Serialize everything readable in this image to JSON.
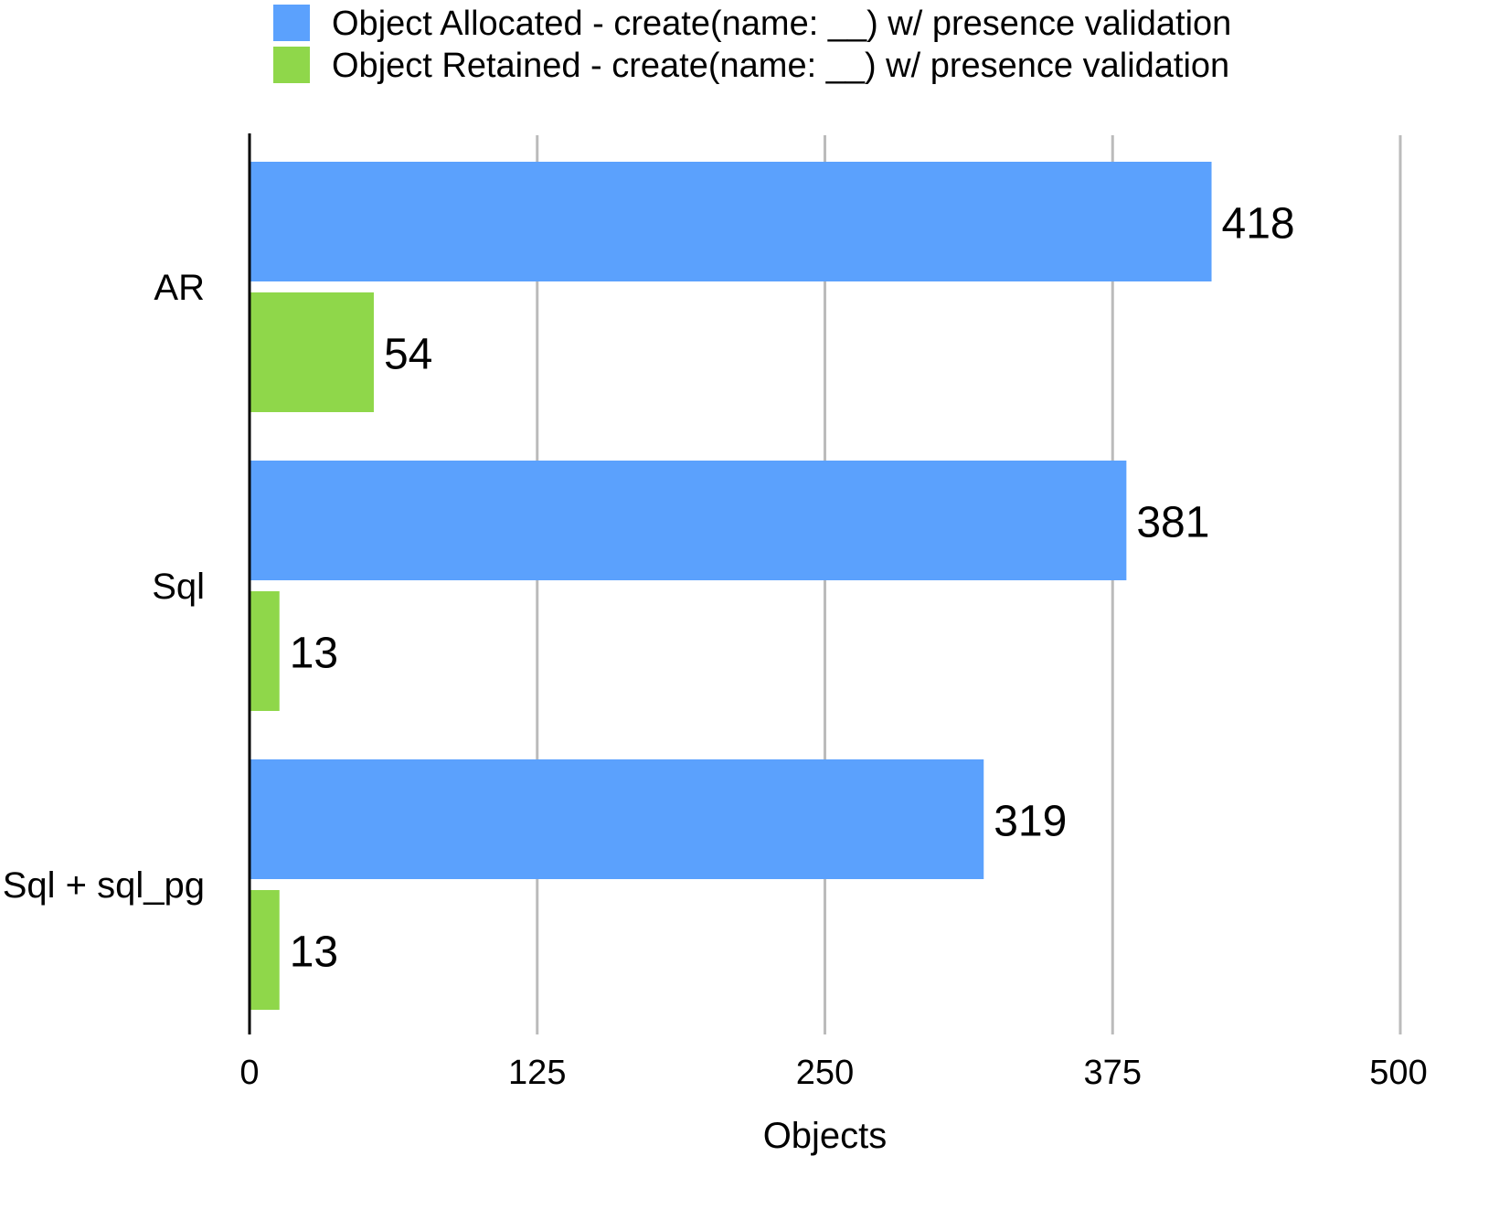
{
  "chart_data": {
    "type": "bar",
    "orientation": "horizontal",
    "categories": [
      "AR",
      "Sql",
      "Sql + sql_pg"
    ],
    "series": [
      {
        "name": "Object Allocated - create(name: __) w/ presence validation",
        "color": "#5ba1fd",
        "values": [
          418,
          381,
          319
        ]
      },
      {
        "name": "Object Retained - create(name: __) w/ presence validation",
        "color": "#8fd74a",
        "values": [
          54,
          13,
          13
        ]
      }
    ],
    "xlabel": "Objects",
    "ylabel": "",
    "xlim": [
      0,
      500
    ],
    "ticks": [
      0,
      125,
      250,
      375,
      500
    ],
    "tick_labels": [
      "0",
      "125",
      "250",
      "375",
      "500"
    ],
    "grid": true,
    "grid_color": "#bbbbbb",
    "legend_position": "top",
    "data_labels": true
  }
}
